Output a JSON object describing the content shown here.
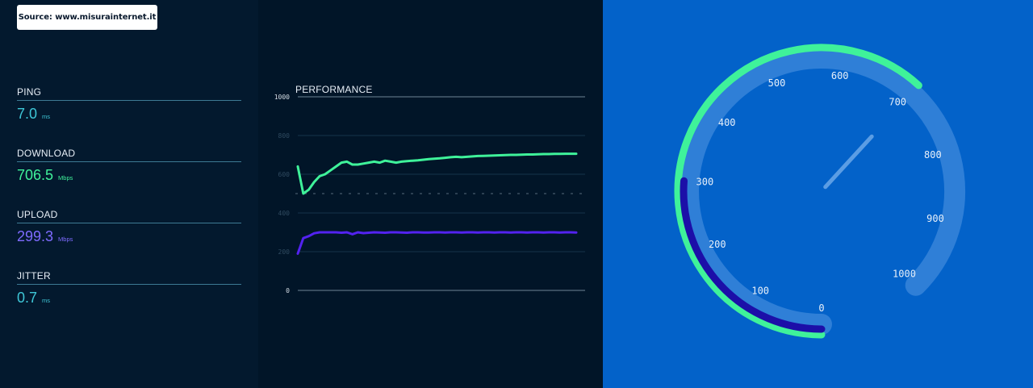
{
  "source_label": "Source: www.misurainternet.it",
  "metrics": [
    {
      "label": "PING",
      "value": "7.0",
      "unit": "ms",
      "color": "#3ec6d6"
    },
    {
      "label": "DOWNLOAD",
      "value": "706.5",
      "unit": "Mbps",
      "color": "#3ff29a"
    },
    {
      "label": "UPLOAD",
      "value": "299.3",
      "unit": "Mbps",
      "color": "#7e6bff"
    },
    {
      "label": "JITTER",
      "value": "0.7",
      "unit": "ms",
      "color": "#3ec6d6"
    }
  ],
  "performance": {
    "title": "PERFORMANCE",
    "ticks": [
      "1000",
      "800",
      "600",
      "400",
      "200",
      "0"
    ],
    "y_range": [
      0,
      1000
    ],
    "download_color": "#3ff29a",
    "upload_color": "#5322f0",
    "download_series": [
      640,
      500,
      520,
      560,
      590,
      600,
      620,
      640,
      660,
      665,
      650,
      650,
      655,
      660,
      665,
      660,
      670,
      665,
      660,
      665,
      668,
      670,
      672,
      675,
      678,
      680,
      682,
      685,
      688,
      690,
      688,
      690,
      692,
      694,
      695,
      696,
      697,
      698,
      699,
      700,
      700,
      701,
      702,
      702,
      703,
      704,
      704,
      705,
      705,
      706,
      706,
      706
    ],
    "upload_series": [
      190,
      270,
      280,
      295,
      300,
      300,
      300,
      300,
      298,
      300,
      290,
      300,
      296,
      298,
      300,
      299,
      298,
      300,
      300,
      299,
      298,
      300,
      300,
      299,
      299,
      300,
      300,
      299,
      300,
      300,
      299,
      300,
      300,
      299,
      300,
      300,
      299,
      300,
      300,
      299,
      300,
      300,
      299,
      300,
      300,
      299,
      300,
      300,
      299,
      300,
      300,
      299
    ]
  },
  "gauge": {
    "labels": [
      "0",
      "100",
      "200",
      "300",
      "400",
      "500",
      "600",
      "700",
      "800",
      "900",
      "1000"
    ],
    "max": 1000,
    "download_value": 706.5,
    "upload_value": 299.3,
    "needle_value": 706.5,
    "track_color": "#2f7fd7",
    "download_color": "#3ff29a",
    "upload_color": "#1c0fa8"
  }
}
